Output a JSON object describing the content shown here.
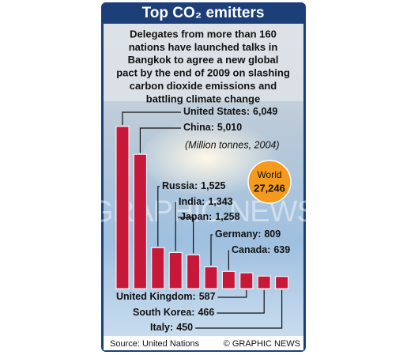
{
  "chart_data": {
    "type": "bar",
    "title": "Top CO₂ emitters",
    "subtitle_lines": [
      "Delegates from more than 160",
      "nations have launched talks in",
      "Bangkok to agree a new global",
      "pact by the end of 2009 on slashing",
      "carbon dioxide emissions and",
      "battling climate change"
    ],
    "unit_note": "(Million tonnes, 2004)",
    "categories": [
      "United States:",
      "China:",
      "Russia:",
      "India:",
      "Japan:",
      "Germany:",
      "Canada:",
      "United Kingdom:",
      "South Korea:",
      "Italy:"
    ],
    "values": [
      6049,
      5010,
      1525,
      1343,
      1258,
      809,
      639,
      587,
      466,
      450
    ],
    "value_labels": [
      "6,049",
      "5,010",
      "1,525",
      "1,343",
      "1,258",
      "809",
      "639",
      "587",
      "466",
      "450"
    ],
    "color": "#c8183a",
    "world_label": "World",
    "world_value": 27246,
    "world_value_label": "27,246",
    "source": "Source: United Nations",
    "credit": "© GRAPHIC NEWS",
    "watermark": "GRAPHIC NEWS"
  }
}
